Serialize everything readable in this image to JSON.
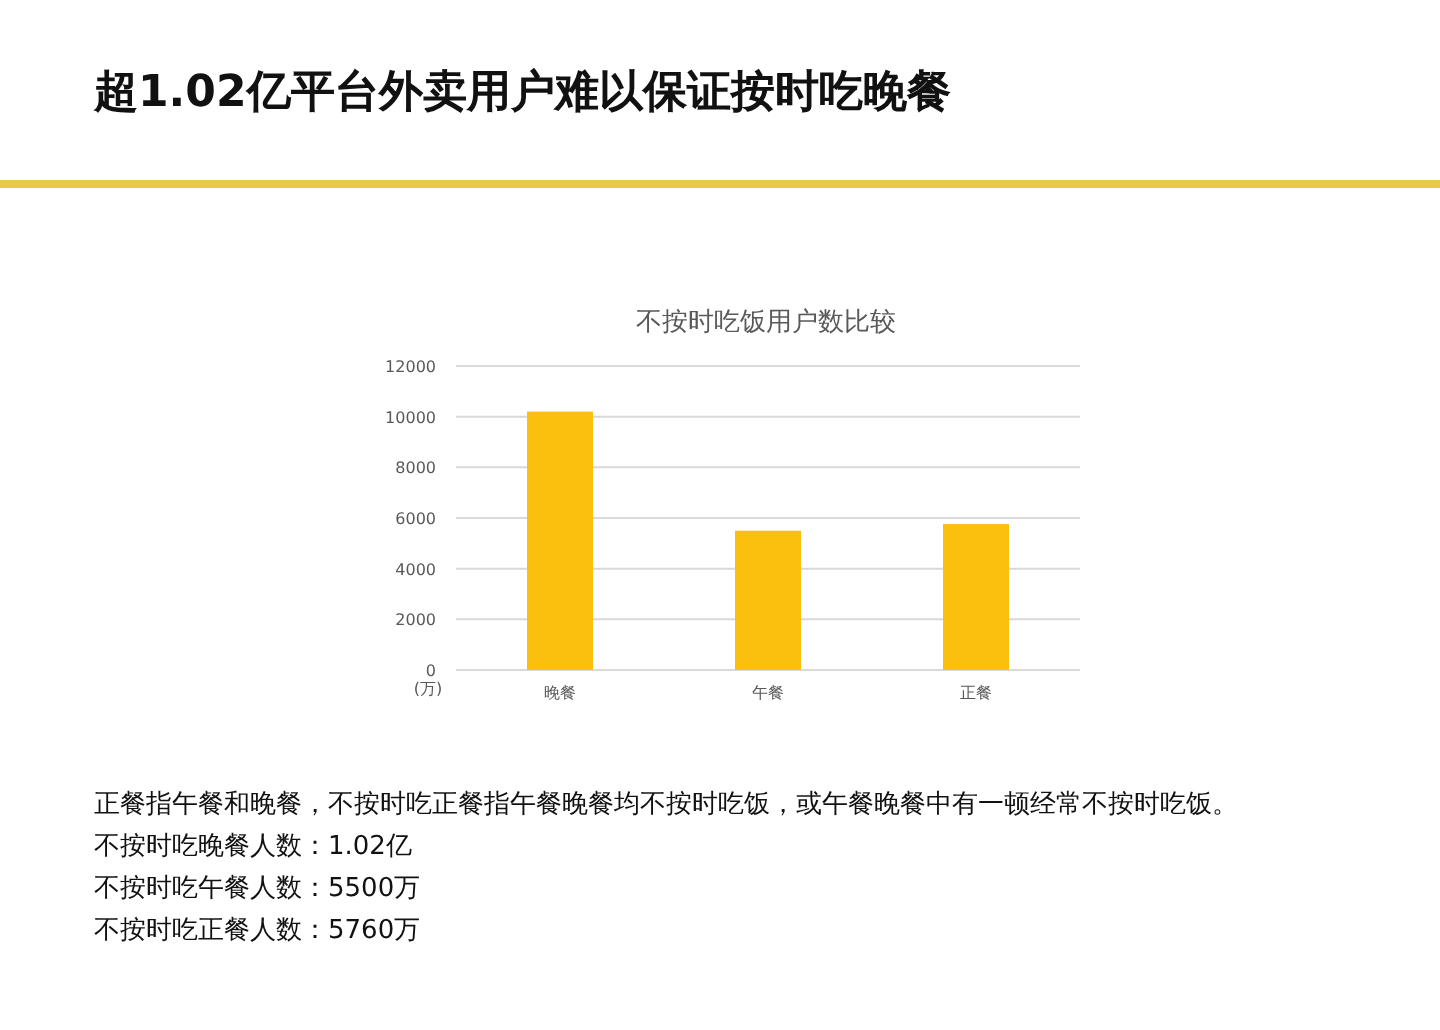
{
  "chart_data": {
    "type": "bar",
    "title": "超1.02亿平台外卖用户难以保证按时吃晚餐",
    "subtitle": "不按时吃饭用户数比较",
    "ylabel": "(万)",
    "categories": [
      "晚餐",
      "午餐",
      "正餐"
    ],
    "values": [
      10200,
      5500,
      5760
    ],
    "color": "#fbbf0e",
    "ylim": [
      0,
      12000
    ],
    "yticks": [
      0,
      2000,
      4000,
      6000,
      8000,
      10000,
      12000
    ],
    "grid": "y",
    "annotations": [
      "正餐指午餐和晚餐，不按时吃正餐指午餐晚餐均不按时吃饭，或午餐晚餐中有一顿经常不按时吃饭。",
      "不按时吃晚餐人数：1.02亿",
      "不按时吃午餐人数：5500万",
      "不按时吃正餐人数：5760万"
    ]
  }
}
